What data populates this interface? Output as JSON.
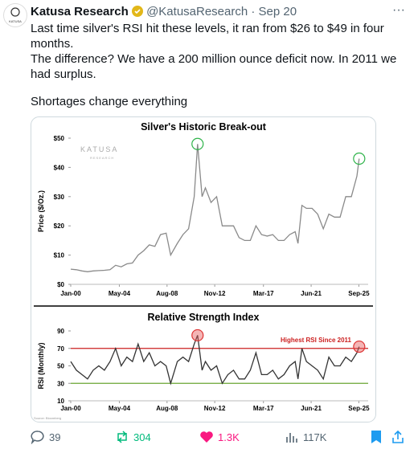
{
  "header": {
    "name": "Katusa Research",
    "handle": "@KatusaResearch",
    "date": "· Sep 20",
    "avatar_text": "KATUSA"
  },
  "text": [
    "Last time silver's RSI hit these levels, it ran from $26 to $49 in four months.",
    "The difference? We have a 200 million ounce deficit now. In 2011 we had surplus.",
    "Shortages change everything"
  ],
  "image": {
    "watermark": "KATUSA",
    "watermark_sub": "RESEARCH",
    "source": "Source: Bloomberg"
  },
  "chart_data": [
    {
      "type": "line",
      "title": "Silver's Historic Break-out",
      "y_label": "Price ($/Oz.)",
      "color": "#8a8a8a",
      "x": [
        2000,
        2000.5,
        2001,
        2001.5,
        2002,
        2002.5,
        2003,
        2003.5,
        2004,
        2004.5,
        2005,
        2005.5,
        2006,
        2006.5,
        2007,
        2007.5,
        2008,
        2008.5,
        2008.9,
        2009.5,
        2010,
        2010.5,
        2011,
        2011.3,
        2011.7,
        2012,
        2012.5,
        2013,
        2013.5,
        2014,
        2014.5,
        2015,
        2015.5,
        2016,
        2016.5,
        2017,
        2017.5,
        2018,
        2018.5,
        2019,
        2019.5,
        2020,
        2020.25,
        2020.6,
        2021,
        2021.5,
        2022,
        2022.5,
        2023,
        2023.5,
        2024,
        2024.5,
        2025,
        2025.5,
        2025.7
      ],
      "values": [
        5.2,
        5.0,
        4.6,
        4.3,
        4.6,
        4.7,
        4.8,
        5.0,
        6.5,
        6.0,
        7.0,
        7.3,
        10,
        11.5,
        13.5,
        13,
        17,
        17.5,
        10,
        14,
        17,
        19,
        30,
        48,
        30,
        33,
        28,
        30,
        20,
        20,
        20,
        16,
        15,
        15,
        20,
        17,
        16.5,
        17,
        15,
        15,
        17,
        18,
        14,
        27,
        26,
        26,
        24,
        19,
        24,
        23,
        23,
        30,
        30,
        37,
        43
      ],
      "xlim": [
        2000,
        2026.5
      ],
      "ylim": [
        0,
        50
      ],
      "xticks": [
        {
          "value": 2000,
          "label": "Jan-00"
        },
        {
          "value": 2004.33,
          "label": "May-04"
        },
        {
          "value": 2008.58,
          "label": "Aug-08"
        },
        {
          "value": 2012.83,
          "label": "Nov-12"
        },
        {
          "value": 2017.17,
          "label": "Mar-17"
        },
        {
          "value": 2021.42,
          "label": "Jun-21"
        },
        {
          "value": 2025.67,
          "label": "Sep-25"
        }
      ],
      "yticks": [
        {
          "value": 0,
          "label": "$0"
        },
        {
          "value": 10,
          "label": "$10"
        },
        {
          "value": 20,
          "label": "$20"
        },
        {
          "value": 30,
          "label": "$30"
        },
        {
          "value": 40,
          "label": "$40"
        },
        {
          "value": 50,
          "label": "$50"
        }
      ]
    },
    {
      "type": "line",
      "title": "Relative Strength Index",
      "y_label": "RSI (Monthly)",
      "color": "#333333",
      "annotation": "Highest RSI Since 2011",
      "x": [
        2000,
        2000.5,
        2001,
        2001.5,
        2002,
        2002.5,
        2003,
        2003.5,
        2004,
        2004.5,
        2005,
        2005.5,
        2006,
        2006.5,
        2007,
        2007.5,
        2008,
        2008.5,
        2008.9,
        2009.5,
        2010,
        2010.5,
        2011,
        2011.3,
        2011.7,
        2012,
        2012.5,
        2013,
        2013.5,
        2014,
        2014.5,
        2015,
        2015.5,
        2016,
        2016.5,
        2017,
        2017.5,
        2018,
        2018.5,
        2019,
        2019.5,
        2020,
        2020.25,
        2020.6,
        2021,
        2021.5,
        2022,
        2022.5,
        2023,
        2023.5,
        2024,
        2024.5,
        2025,
        2025.5,
        2025.7
      ],
      "values": [
        55,
        45,
        40,
        35,
        45,
        50,
        45,
        55,
        70,
        50,
        60,
        55,
        75,
        55,
        65,
        50,
        55,
        50,
        30,
        55,
        60,
        55,
        75,
        85,
        45,
        55,
        45,
        50,
        30,
        40,
        45,
        35,
        35,
        45,
        65,
        40,
        40,
        45,
        35,
        40,
        50,
        55,
        35,
        70,
        55,
        50,
        45,
        35,
        60,
        50,
        50,
        60,
        55,
        65,
        72
      ],
      "reference_lines": [
        {
          "value": 70,
          "color": "#cc1f1f"
        },
        {
          "value": 30,
          "color": "#6aa533"
        }
      ],
      "xlim": [
        2000,
        2026.5
      ],
      "ylim": [
        10,
        90
      ],
      "xticks": [
        {
          "value": 2000,
          "label": "Jan-00"
        },
        {
          "value": 2004.33,
          "label": "May-04"
        },
        {
          "value": 2008.58,
          "label": "Aug-08"
        },
        {
          "value": 2012.83,
          "label": "Nov-12"
        },
        {
          "value": 2017.17,
          "label": "Mar-17"
        },
        {
          "value": 2021.42,
          "label": "Jun-21"
        },
        {
          "value": 2025.67,
          "label": "Sep-25"
        }
      ],
      "yticks": [
        10,
        30,
        50,
        70,
        90
      ]
    }
  ],
  "actions": {
    "replies": "39",
    "reposts": "304",
    "likes": "1.3K",
    "views": "117K"
  }
}
